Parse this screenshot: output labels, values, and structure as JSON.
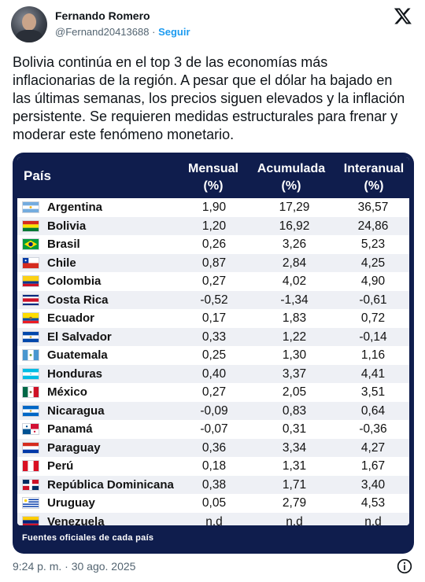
{
  "author": {
    "name": "Fernando Romero",
    "handle": "@Fernand20413688",
    "separator": "·",
    "follow_label": "Seguir"
  },
  "icons": {
    "brand": "x-logo-icon",
    "info": "info-icon"
  },
  "tweet": {
    "text": "Bolivia continúa en el top 3 de las economías más inflacionarias de la región. A pesar que el dólar ha bajado en las últimas semanas, los precios siguen elevados y la inflación persistente. Se requieren medidas estructurales para frenar y moderar este fenómeno monetario.",
    "timestamp": "9:24 p. m. · 30 ago. 2025"
  },
  "table": {
    "header": {
      "pais": "País",
      "mensual": "Mensual",
      "mensual_unit": "(%)",
      "acumulada": "Acumulada",
      "acumulada_unit": "(%)",
      "interanual": "Interanual",
      "interanual_unit": "(%)"
    },
    "rows": [
      {
        "country": "Argentina",
        "flag": "argentina",
        "mensual": "1,90",
        "acumulada": "17,29",
        "interanual": "36,57"
      },
      {
        "country": "Bolivia",
        "flag": "bolivia",
        "mensual": "1,20",
        "acumulada": "16,92",
        "interanual": "24,86"
      },
      {
        "country": "Brasil",
        "flag": "brasil",
        "mensual": "0,26",
        "acumulada": "3,26",
        "interanual": "5,23"
      },
      {
        "country": "Chile",
        "flag": "chile",
        "mensual": "0,87",
        "acumulada": "2,84",
        "interanual": "4,25"
      },
      {
        "country": "Colombia",
        "flag": "colombia",
        "mensual": "0,27",
        "acumulada": "4,02",
        "interanual": "4,90"
      },
      {
        "country": "Costa Rica",
        "flag": "costa-rica",
        "mensual": "-0,52",
        "acumulada": "-1,34",
        "interanual": "-0,61"
      },
      {
        "country": "Ecuador",
        "flag": "ecuador",
        "mensual": "0,17",
        "acumulada": "1,83",
        "interanual": "0,72"
      },
      {
        "country": "El Salvador",
        "flag": "el-salvador",
        "mensual": "0,33",
        "acumulada": "1,22",
        "interanual": "-0,14"
      },
      {
        "country": "Guatemala",
        "flag": "guatemala",
        "mensual": "0,25",
        "acumulada": "1,30",
        "interanual": "1,16"
      },
      {
        "country": "Honduras",
        "flag": "honduras",
        "mensual": "0,40",
        "acumulada": "3,37",
        "interanual": "4,41"
      },
      {
        "country": "México",
        "flag": "mexico",
        "mensual": "0,27",
        "acumulada": "2,05",
        "interanual": "3,51"
      },
      {
        "country": "Nicaragua",
        "flag": "nicaragua",
        "mensual": "-0,09",
        "acumulada": "0,83",
        "interanual": "0,64"
      },
      {
        "country": "Panamá",
        "flag": "panama",
        "mensual": "-0,07",
        "acumulada": "0,31",
        "interanual": "-0,36"
      },
      {
        "country": "Paraguay",
        "flag": "paraguay",
        "mensual": "0,36",
        "acumulada": "3,34",
        "interanual": "4,27"
      },
      {
        "country": "Perú",
        "flag": "peru",
        "mensual": "0,18",
        "acumulada": "1,31",
        "interanual": "1,67"
      },
      {
        "country": "República Dominicana",
        "flag": "republica-dominicana",
        "mensual": "0,38",
        "acumulada": "1,71",
        "interanual": "3,40"
      },
      {
        "country": "Uruguay",
        "flag": "uruguay",
        "mensual": "0,05",
        "acumulada": "2,79",
        "interanual": "4,53"
      },
      {
        "country": "Venezuela",
        "flag": "venezuela",
        "mensual": "n.d",
        "acumulada": "n.d",
        "interanual": "n.d"
      }
    ],
    "source": "Fuentes oficiales de cada país"
  },
  "colors": {
    "header_bg": "#0f1d4d",
    "link": "#1d9bf0",
    "muted": "#536471"
  }
}
